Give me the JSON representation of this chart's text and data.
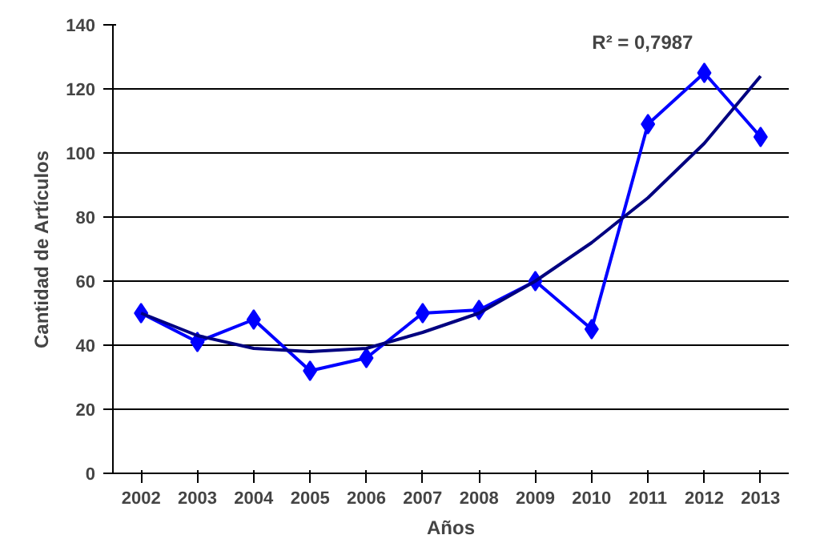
{
  "chart_data": {
    "type": "line",
    "xlabel": "Años",
    "ylabel": "Cantidad de Artículos",
    "categories": [
      "2002",
      "2003",
      "2004",
      "2005",
      "2006",
      "2007",
      "2008",
      "2009",
      "2010",
      "2011",
      "2012",
      "2013"
    ],
    "series": [
      {
        "color": "#0000ff",
        "marker": "diamond",
        "values": [
          50,
          41,
          48,
          32,
          36,
          50,
          51,
          60,
          45,
          109,
          125,
          105
        ]
      },
      {
        "color": "#000080",
        "marker": "none",
        "values": [
          50,
          43,
          39,
          38,
          39,
          44,
          50,
          60,
          72,
          86,
          103,
          124
        ]
      }
    ],
    "ylim": [
      0,
      140
    ],
    "yticks": [
      0,
      20,
      40,
      60,
      80,
      100,
      120,
      140
    ],
    "grid": "y",
    "annotations": [
      "R² = 0,7987"
    ]
  }
}
